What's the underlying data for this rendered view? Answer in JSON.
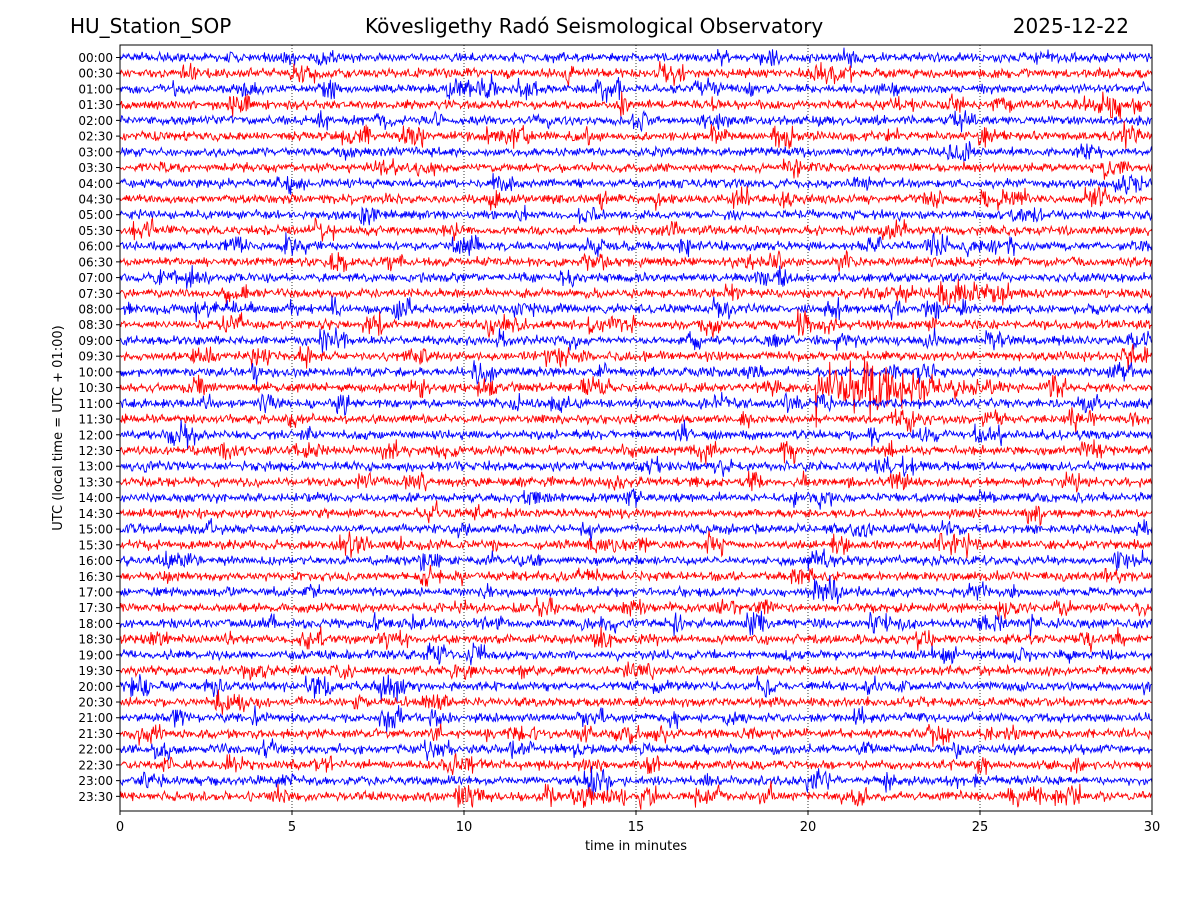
{
  "chart_data": {
    "type": "line",
    "title_left": "HU_Station_SOP",
    "title": "Kövesligethy Radó Seismological Observatory",
    "title_right": "2025-12-22",
    "xlabel": "time in minutes",
    "ylabel": "UTC (local time = UTC + 01:00)",
    "xlim": [
      0,
      30
    ],
    "xticks": [
      "0",
      "5",
      "10",
      "15",
      "20",
      "25",
      "30"
    ],
    "grid_x": [
      5,
      10,
      15,
      20,
      25
    ],
    "row_labels": [
      "00:00",
      "00:30",
      "01:00",
      "01:30",
      "02:00",
      "02:30",
      "03:00",
      "03:30",
      "04:00",
      "04:30",
      "05:00",
      "05:30",
      "06:00",
      "06:30",
      "07:00",
      "07:30",
      "08:00",
      "08:30",
      "09:00",
      "09:30",
      "10:00",
      "10:30",
      "11:00",
      "11:30",
      "12:00",
      "12:30",
      "13:00",
      "13:30",
      "14:00",
      "14:30",
      "15:00",
      "15:30",
      "16:00",
      "16:30",
      "17:00",
      "17:30",
      "18:00",
      "18:30",
      "19:00",
      "19:30",
      "20:00",
      "20:30",
      "21:00",
      "21:30",
      "22:00",
      "22:30",
      "23:00",
      "23:30"
    ],
    "series_colors": [
      "#0000ff",
      "#ff0000"
    ],
    "event": {
      "row": "10:30",
      "onset_minute": 20.2,
      "end_minute": 26.0,
      "peak_minute": 21.8
    }
  }
}
